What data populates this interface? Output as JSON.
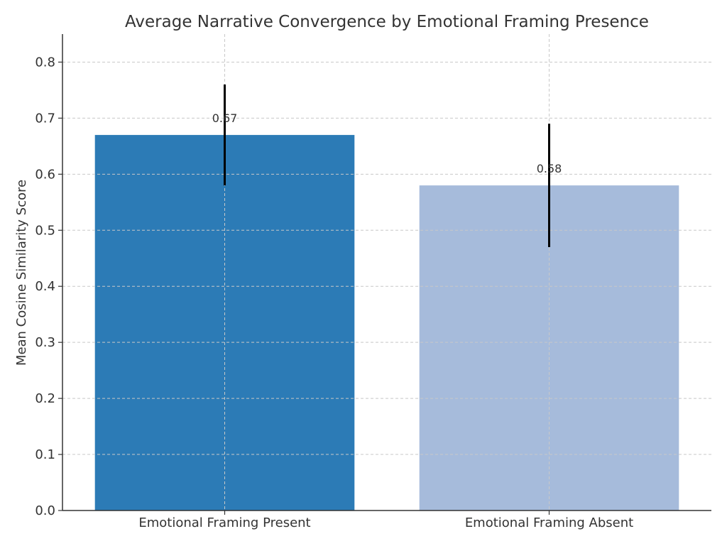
{
  "chart_data": {
    "type": "bar",
    "title": "Average Narrative Convergence by Emotional Framing Presence",
    "xlabel": "",
    "ylabel": "Mean Cosine Similarity Score",
    "categories": [
      "Emotional Framing Present",
      "Emotional Framing Absent"
    ],
    "values": [
      0.67,
      0.58
    ],
    "value_labels": [
      "0.67",
      "0.58"
    ],
    "error": [
      0.09,
      0.11
    ],
    "colors": [
      "#2c7bb6",
      "#a6bbdb"
    ],
    "error_color": "#000000",
    "ylim": [
      0,
      0.85
    ],
    "yticks": [
      0.0,
      0.1,
      0.2,
      0.3,
      0.4,
      0.5,
      0.6,
      0.7,
      0.8
    ],
    "ytick_labels": [
      "0.0",
      "0.1",
      "0.2",
      "0.3",
      "0.4",
      "0.5",
      "0.6",
      "0.7",
      "0.8"
    ],
    "grid": true,
    "grid_style": "dashed"
  }
}
